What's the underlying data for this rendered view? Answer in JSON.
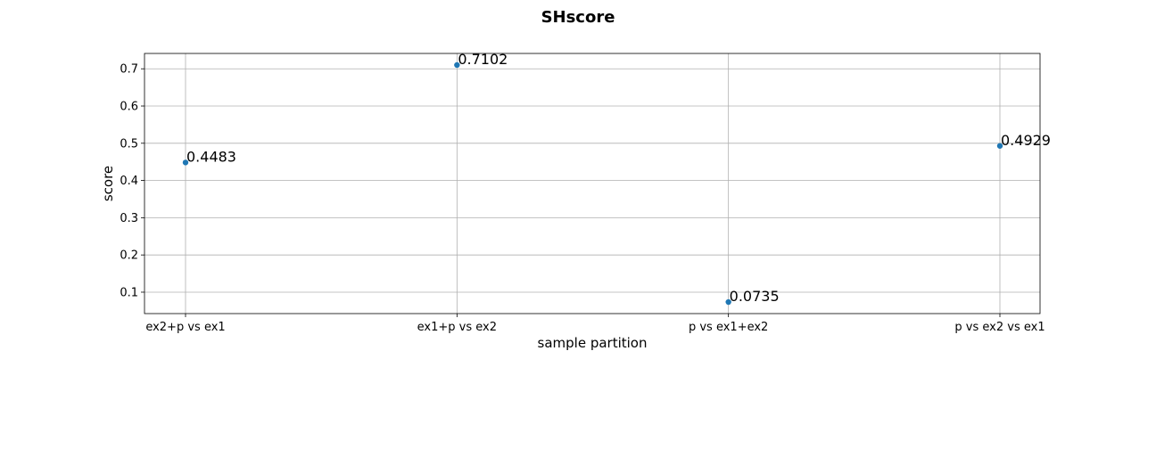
{
  "chart_data": {
    "type": "scatter",
    "title": "SHscore",
    "xlabel": "sample partition",
    "ylabel": "score",
    "categories": [
      "ex2+p vs ex1",
      "ex1+p vs ex2",
      "p vs ex1+ex2",
      "p vs ex2 vs ex1"
    ],
    "values": [
      0.4483,
      0.7102,
      0.0735,
      0.4929
    ],
    "data_labels": [
      "0.4483",
      "0.7102",
      "0.0735",
      "0.4929"
    ],
    "yticks": [
      0.1,
      0.2,
      0.3,
      0.4,
      0.5,
      0.6,
      0.7
    ],
    "ytick_labels": [
      "0.1",
      "0.2",
      "0.3",
      "0.4",
      "0.5",
      "0.6",
      "0.7"
    ],
    "ylim": [
      0.0425,
      0.7412
    ],
    "grid": true,
    "marker_color": "#1f77b4"
  }
}
